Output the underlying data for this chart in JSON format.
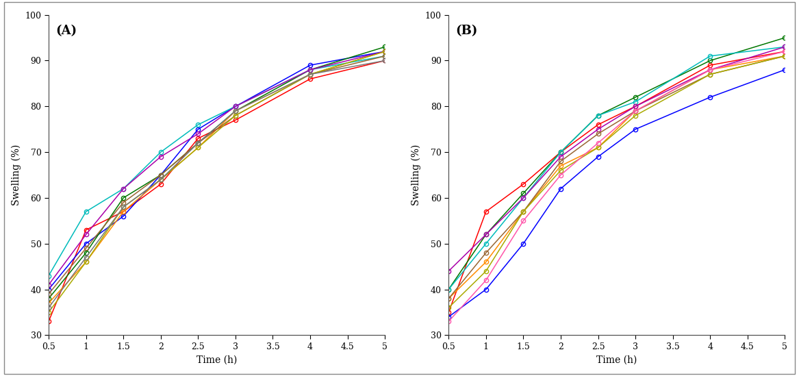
{
  "time_points": [
    0.5,
    1,
    1.5,
    2,
    2.5,
    3,
    4,
    5
  ],
  "panel_A": {
    "series": [
      {
        "color": "#FF0000",
        "marker": "o",
        "values": [
          33,
          53,
          57,
          63,
          73,
          77,
          86,
          90
        ]
      },
      {
        "color": "#0000FF",
        "marker": "o",
        "values": [
          40,
          50,
          56,
          65,
          75,
          80,
          89,
          92
        ]
      },
      {
        "color": "#007700",
        "marker": "o",
        "values": [
          38,
          48,
          60,
          65,
          72,
          79,
          88,
          93
        ]
      },
      {
        "color": "#FF8C00",
        "marker": "o",
        "values": [
          37,
          46,
          57,
          64,
          71,
          79,
          87,
          92
        ]
      },
      {
        "color": "#00BBBB",
        "marker": "o",
        "values": [
          43,
          57,
          62,
          70,
          76,
          80,
          88,
          91
        ]
      },
      {
        "color": "#AA00AA",
        "marker": "o",
        "values": [
          41,
          52,
          62,
          69,
          74,
          80,
          88,
          92
        ]
      },
      {
        "color": "#996633",
        "marker": "o",
        "values": [
          39,
          49,
          59,
          65,
          72,
          78,
          87,
          91
        ]
      },
      {
        "color": "#AAAA00",
        "marker": "o",
        "values": [
          35,
          46,
          58,
          64,
          71,
          78,
          87,
          92
        ]
      },
      {
        "color": "#777777",
        "marker": "o",
        "values": [
          36,
          47,
          58,
          64,
          72,
          79,
          87,
          90
        ]
      }
    ]
  },
  "panel_B": {
    "series": [
      {
        "color": "#FF0000",
        "marker": "o",
        "values": [
          35,
          57,
          63,
          70,
          76,
          80,
          89,
          92
        ]
      },
      {
        "color": "#0000FF",
        "marker": "o",
        "values": [
          34,
          40,
          50,
          62,
          69,
          75,
          82,
          88
        ]
      },
      {
        "color": "#007700",
        "marker": "o",
        "values": [
          40,
          52,
          61,
          70,
          78,
          82,
          90,
          95
        ]
      },
      {
        "color": "#FF8C00",
        "marker": "o",
        "values": [
          38,
          46,
          57,
          67,
          71,
          79,
          88,
          91
        ]
      },
      {
        "color": "#00BBBB",
        "marker": "o",
        "values": [
          40,
          50,
          60,
          70,
          78,
          81,
          91,
          93
        ]
      },
      {
        "color": "#AA00AA",
        "marker": "o",
        "values": [
          44,
          52,
          60,
          69,
          75,
          80,
          88,
          93
        ]
      },
      {
        "color": "#996633",
        "marker": "o",
        "values": [
          38,
          48,
          57,
          68,
          74,
          79,
          87,
          91
        ]
      },
      {
        "color": "#AAAA00",
        "marker": "o",
        "values": [
          36,
          44,
          57,
          66,
          71,
          78,
          87,
          91
        ]
      },
      {
        "color": "#FF55AA",
        "marker": "o",
        "values": [
          33,
          42,
          55,
          65,
          72,
          79,
          88,
          92
        ]
      }
    ]
  },
  "ylabel": "Swelling (%)",
  "xlabel": "Time (h)",
  "ylim": [
    30,
    100
  ],
  "xlim": [
    0.5,
    5.0
  ],
  "xticks": [
    0.5,
    1.0,
    1.5,
    2.0,
    2.5,
    3.0,
    3.5,
    4.0,
    4.5,
    5.0
  ],
  "yticks": [
    30,
    40,
    50,
    60,
    70,
    80,
    90,
    100
  ],
  "label_A": "(A)",
  "label_B": "(B)",
  "background_color": "#FFFFFF"
}
